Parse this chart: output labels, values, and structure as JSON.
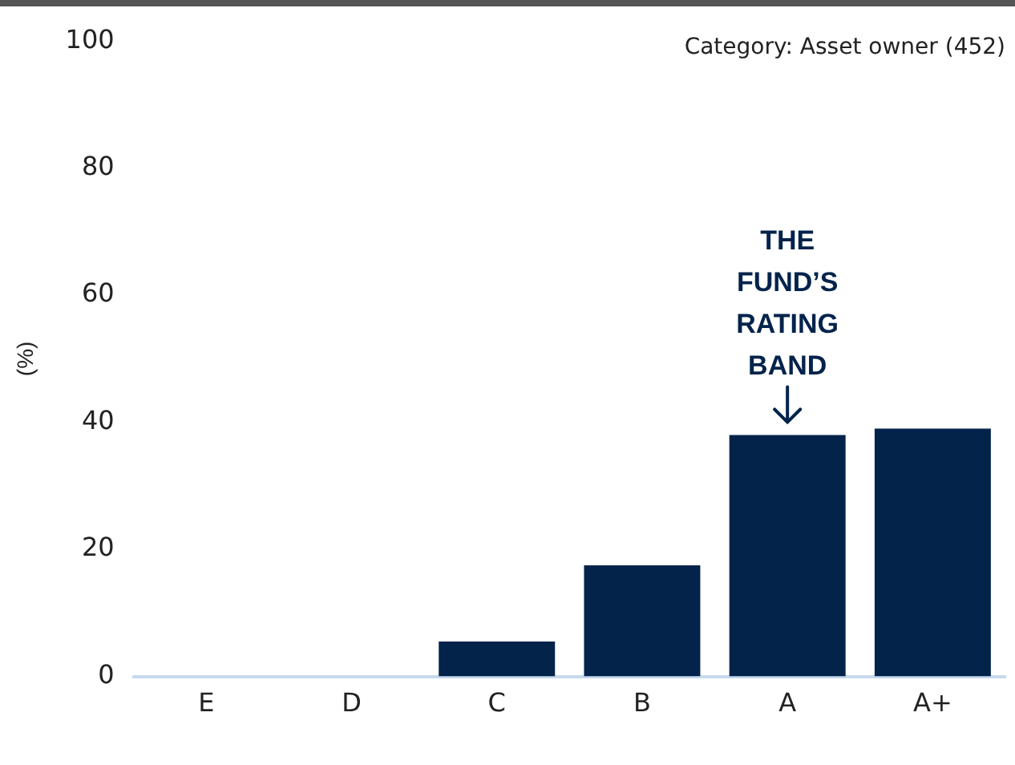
{
  "chart_data": {
    "type": "bar",
    "ylabel": "(%)",
    "categories": [
      "E",
      "D",
      "C",
      "B",
      "A",
      "A+"
    ],
    "values": [
      0,
      0,
      5.5,
      17.5,
      38,
      39
    ],
    "color": "#03234b",
    "ylim": [
      0,
      100
    ],
    "yticks": [
      0,
      20,
      40,
      60,
      80,
      100
    ],
    "grid": false,
    "legend": false,
    "annotations": [
      "Category: Asset owner (452)",
      {
        "text": "THE\nFUND’S\nRATING\nBAND",
        "x": "A",
        "y": 38
      }
    ]
  }
}
